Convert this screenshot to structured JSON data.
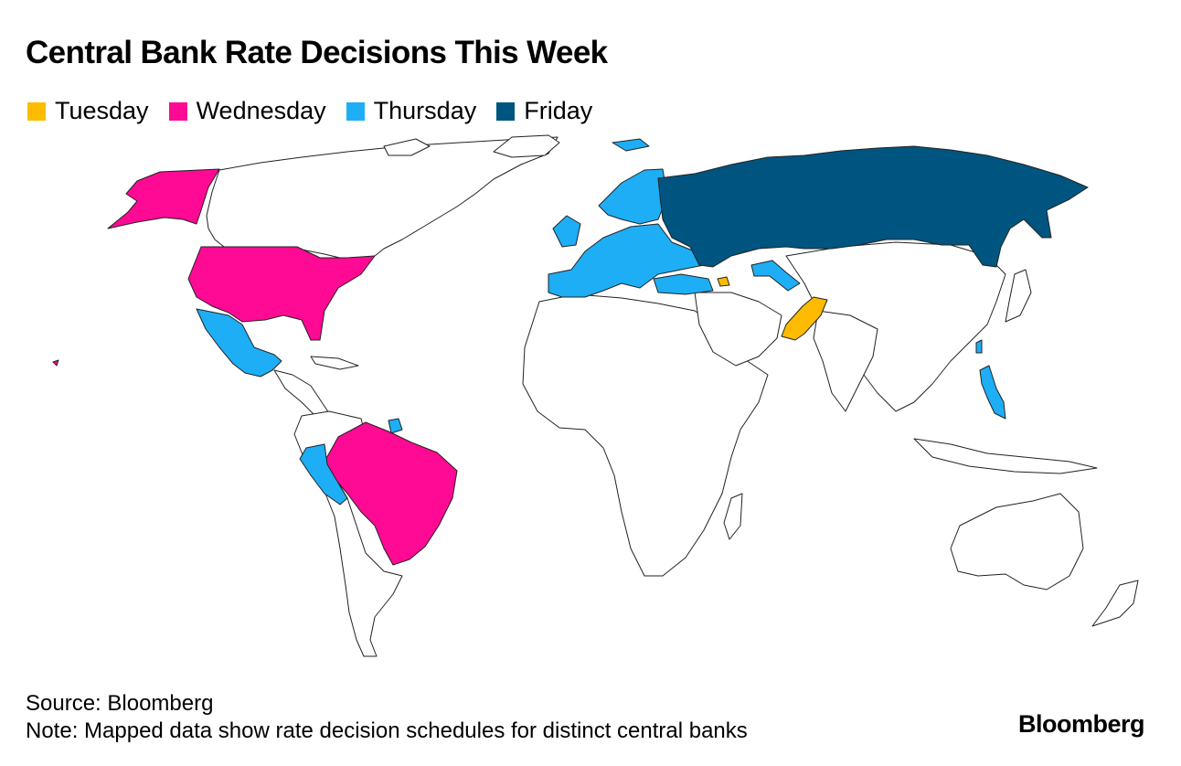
{
  "title": "Central Bank Rate Decisions This Week",
  "legend": [
    {
      "label": "Tuesday",
      "color": "#FFBB00"
    },
    {
      "label": "Wednesday",
      "color": "#FF0A94"
    },
    {
      "label": "Thursday",
      "color": "#1EAEF5"
    },
    {
      "label": "Friday",
      "color": "#005580"
    }
  ],
  "colors": {
    "tuesday": "#FFBB00",
    "wednesday": "#FF0A94",
    "thursday": "#1EAEF5",
    "friday": "#005580",
    "no_decision": "#FFFFFF"
  },
  "map": {
    "type": "choropleth",
    "regions": [
      {
        "name": "United States",
        "day": "Wednesday"
      },
      {
        "name": "Brazil",
        "day": "Wednesday"
      },
      {
        "name": "Mexico",
        "day": "Thursday"
      },
      {
        "name": "Peru",
        "day": "Thursday"
      },
      {
        "name": "Suriname",
        "day": "Thursday"
      },
      {
        "name": "Europe",
        "day": "Thursday"
      },
      {
        "name": "Turkey",
        "day": "Thursday"
      },
      {
        "name": "Uzbekistan",
        "day": "Thursday"
      },
      {
        "name": "Philippines",
        "day": "Thursday"
      },
      {
        "name": "Russia",
        "day": "Friday"
      },
      {
        "name": "Pakistan",
        "day": "Tuesday"
      },
      {
        "name": "Armenia",
        "day": "Tuesday"
      }
    ]
  },
  "footer": {
    "source": "Source: Bloomberg",
    "note": "Note: Mapped data show rate decision schedules for distinct central banks"
  },
  "brand": "Bloomberg"
}
